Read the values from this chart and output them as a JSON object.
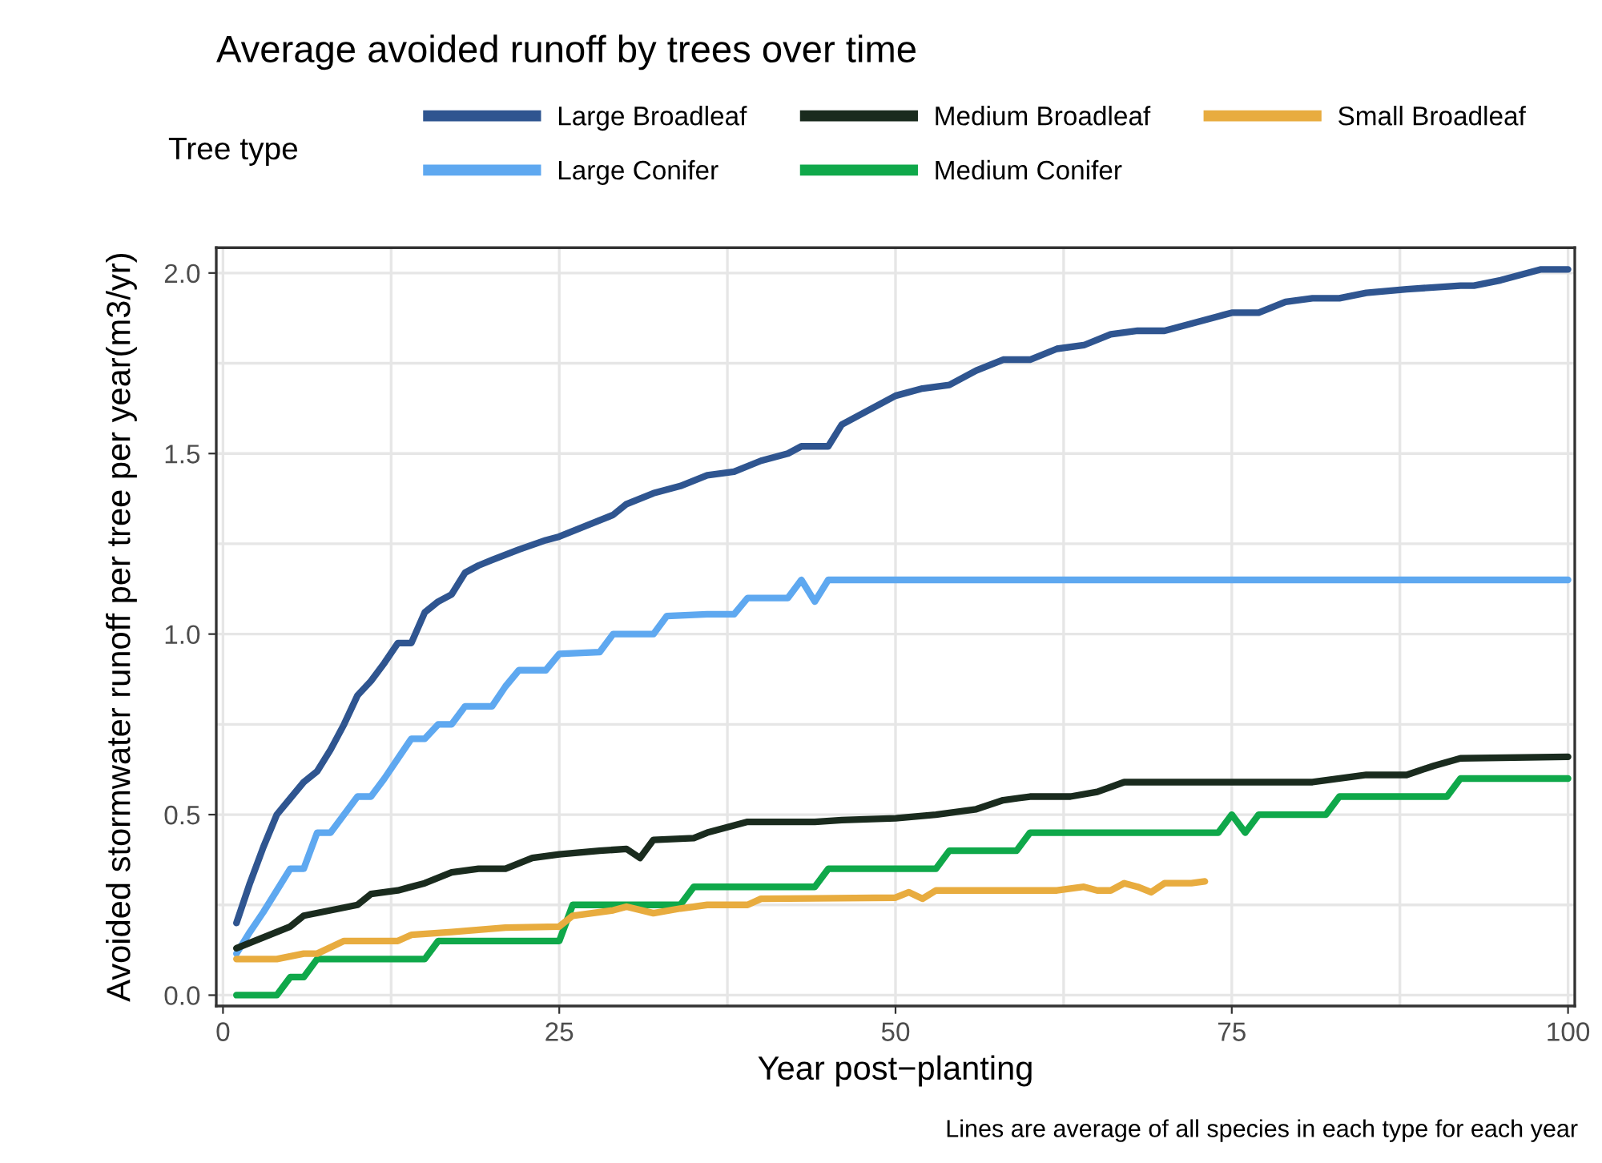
{
  "chart_data": {
    "type": "line",
    "title": "Average avoided runoff by trees over time",
    "xlabel": "Year post−planting",
    "ylabel": "Avoided stormwater runoff per tree per year(m3/yr)",
    "legend_title": "Tree type",
    "legend": "top",
    "grid": true,
    "line_style": "solid",
    "marker": "none",
    "xlim": [
      -0.5,
      100.5
    ],
    "xticks": [
      0,
      25,
      50,
      75,
      100
    ],
    "ylim": [
      -0.03,
      2.07
    ],
    "yticks": [
      {
        "value": 0,
        "label": "0.0"
      },
      {
        "value": 0.5,
        "label": "0.5"
      },
      {
        "value": 1,
        "label": "1.0"
      },
      {
        "value": 1.5,
        "label": "1.5"
      },
      {
        "value": 2,
        "label": "2.0"
      }
    ],
    "annotations": [
      "Lines are average of all species in each type for each year"
    ],
    "series": [
      {
        "name": "Large Broadleaf",
        "color": "#2f5590",
        "x": [
          1,
          2,
          3,
          4,
          5,
          6,
          7,
          8,
          9,
          10,
          11,
          12,
          13,
          14,
          15,
          16,
          17,
          18,
          19,
          20,
          22,
          24,
          25,
          27,
          29,
          30,
          32,
          34,
          36,
          38,
          40,
          42,
          43,
          45,
          46,
          48,
          50,
          52,
          54,
          56,
          58,
          60,
          62,
          64,
          66,
          68,
          70,
          72,
          74,
          75,
          77,
          79,
          81,
          83,
          85,
          88,
          92,
          93,
          95,
          97,
          98,
          100
        ],
        "values": [
          0.2,
          0.31,
          0.41,
          0.5,
          0.545,
          0.59,
          0.62,
          0.68,
          0.75,
          0.83,
          0.87,
          0.92,
          0.975,
          0.975,
          1.06,
          1.09,
          1.11,
          1.17,
          1.19,
          1.205,
          1.234,
          1.26,
          1.27,
          1.3,
          1.33,
          1.36,
          1.39,
          1.41,
          1.44,
          1.45,
          1.48,
          1.5,
          1.52,
          1.52,
          1.58,
          1.62,
          1.66,
          1.68,
          1.69,
          1.73,
          1.76,
          1.76,
          1.79,
          1.8,
          1.83,
          1.84,
          1.84,
          1.86,
          1.88,
          1.89,
          1.89,
          1.92,
          1.93,
          1.93,
          1.945,
          1.955,
          1.965,
          1.965,
          1.98,
          2.0,
          2.01,
          2.01
        ]
      },
      {
        "name": "Large Conifer",
        "color": "#5ea8f0",
        "x": [
          1,
          2,
          3,
          4,
          5,
          6,
          7,
          8,
          9,
          10,
          11,
          12,
          13,
          14,
          15,
          16,
          17,
          18,
          20,
          21,
          22,
          24,
          25,
          28,
          29,
          32,
          33,
          36,
          38,
          39,
          42,
          43,
          44,
          45,
          100
        ],
        "values": [
          0.115,
          0.175,
          0.23,
          0.29,
          0.35,
          0.35,
          0.45,
          0.45,
          0.5,
          0.55,
          0.55,
          0.6,
          0.655,
          0.71,
          0.71,
          0.75,
          0.75,
          0.8,
          0.8,
          0.855,
          0.9,
          0.9,
          0.945,
          0.95,
          1.0,
          1.0,
          1.05,
          1.055,
          1.055,
          1.1,
          1.1,
          1.15,
          1.09,
          1.15,
          1.15
        ]
      },
      {
        "name": "Medium Broadleaf",
        "color": "#1a2b1e",
        "x": [
          1,
          3,
          5,
          6,
          8,
          10,
          11,
          13,
          15,
          17,
          19,
          21,
          23,
          25,
          28,
          30,
          31,
          32,
          35,
          36,
          39,
          44,
          46,
          50,
          53,
          56,
          58,
          60,
          63,
          65,
          67,
          75,
          81,
          83,
          85,
          88,
          90,
          92,
          100
        ],
        "values": [
          0.13,
          0.16,
          0.19,
          0.22,
          0.235,
          0.25,
          0.28,
          0.29,
          0.31,
          0.34,
          0.35,
          0.35,
          0.38,
          0.39,
          0.4,
          0.405,
          0.38,
          0.43,
          0.435,
          0.45,
          0.48,
          0.48,
          0.485,
          0.49,
          0.5,
          0.515,
          0.54,
          0.55,
          0.55,
          0.563,
          0.59,
          0.59,
          0.59,
          0.6,
          0.61,
          0.61,
          0.635,
          0.656,
          0.66
        ]
      },
      {
        "name": "Medium Conifer",
        "color": "#0fa84a",
        "x": [
          1,
          4,
          5,
          6,
          7,
          15,
          16,
          25,
          26,
          34,
          35,
          44,
          45,
          53,
          54,
          59,
          60,
          74,
          75,
          76,
          77,
          82,
          83,
          91,
          92,
          100
        ],
        "values": [
          0,
          0,
          0.05,
          0.05,
          0.1,
          0.1,
          0.15,
          0.15,
          0.25,
          0.25,
          0.3,
          0.3,
          0.35,
          0.35,
          0.4,
          0.4,
          0.45,
          0.45,
          0.5,
          0.45,
          0.5,
          0.5,
          0.55,
          0.55,
          0.6,
          0.6
        ]
      },
      {
        "name": "Small Broadleaf",
        "color": "#e8ac3f",
        "x": [
          1,
          4,
          6,
          7,
          9,
          13,
          14,
          17,
          21,
          25,
          26,
          29,
          30,
          32,
          34,
          36,
          39,
          40,
          50,
          51,
          52,
          53,
          62,
          64,
          65,
          66,
          67,
          68,
          69,
          70,
          72,
          73
        ],
        "values": [
          0.1,
          0.1,
          0.115,
          0.115,
          0.15,
          0.15,
          0.167,
          0.175,
          0.187,
          0.19,
          0.22,
          0.235,
          0.245,
          0.227,
          0.24,
          0.25,
          0.25,
          0.267,
          0.27,
          0.285,
          0.267,
          0.29,
          0.29,
          0.3,
          0.29,
          0.29,
          0.31,
          0.3,
          0.285,
          0.31,
          0.31,
          0.315
        ]
      }
    ]
  }
}
